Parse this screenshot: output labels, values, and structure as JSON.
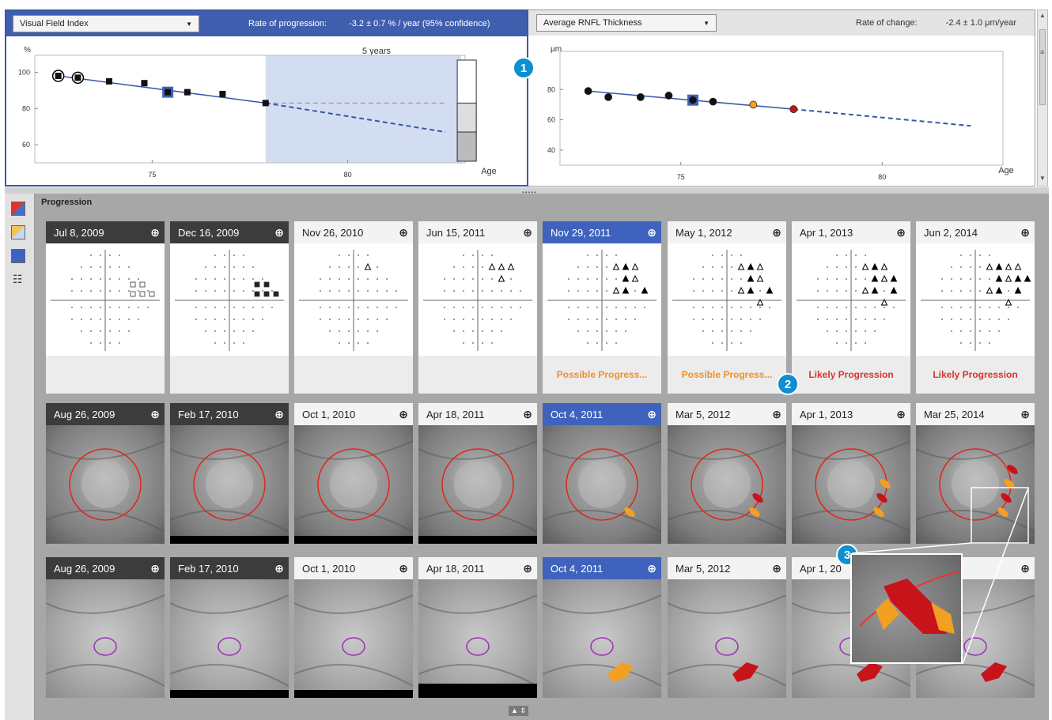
{
  "vfi_panel": {
    "metric_label": "Visual Field Index",
    "rate_label": "Rate of progression:",
    "rate_value": "-3.2 ± 0.7 % / year (95% confidence)",
    "y_unit": "%",
    "window_label": "5 years",
    "x_label": "Age"
  },
  "rnfl_panel": {
    "metric_label": "Average RNFL Thickness",
    "rate_label": "Rate of change:",
    "rate_value": "-2.4 ± 1.0 μm/year",
    "y_unit": "μm",
    "x_label": "Age"
  },
  "badges": {
    "b1": "1",
    "b2": "2",
    "b3": "3"
  },
  "progression": {
    "title": "Progression"
  },
  "vf_row": [
    {
      "date": "Jul 8, 2009",
      "style": "dark",
      "label": "",
      "label_color": ""
    },
    {
      "date": "Dec 16, 2009",
      "style": "dark",
      "label": "",
      "label_color": ""
    },
    {
      "date": "Nov 26, 2010",
      "style": "light",
      "label": "",
      "label_color": ""
    },
    {
      "date": "Jun 15, 2011",
      "style": "light",
      "label": "",
      "label_color": ""
    },
    {
      "date": "Nov 29, 2011",
      "style": "blue",
      "label": "Possible Progress...",
      "label_color": "#f0902a"
    },
    {
      "date": "May 1, 2012",
      "style": "light",
      "label": "Possible Progress...",
      "label_color": "#f0902a"
    },
    {
      "date": "Apr 1, 2013",
      "style": "light",
      "label": "Likely Progression",
      "label_color": "#d9342b"
    },
    {
      "date": "Jun 2, 2014",
      "style": "light",
      "label": "Likely Progression",
      "label_color": "#d9342b"
    }
  ],
  "disc_row": [
    {
      "date": "Aug 26, 2009",
      "style": "dark"
    },
    {
      "date": "Feb 17, 2010",
      "style": "dark"
    },
    {
      "date": "Oct 1, 2010",
      "style": "light"
    },
    {
      "date": "Apr 18, 2011",
      "style": "light"
    },
    {
      "date": "Oct 4, 2011",
      "style": "blue"
    },
    {
      "date": "Mar 5, 2012",
      "style": "light"
    },
    {
      "date": "Apr 1, 2013",
      "style": "light"
    },
    {
      "date": "Mar 25, 2014",
      "style": "light"
    }
  ],
  "macula_row": [
    {
      "date": "Aug 26, 2009",
      "style": "dark"
    },
    {
      "date": "Feb 17, 2010",
      "style": "dark"
    },
    {
      "date": "Oct 1, 2010",
      "style": "light"
    },
    {
      "date": "Apr 18, 2011",
      "style": "light"
    },
    {
      "date": "Oct 4, 2011",
      "style": "blue"
    },
    {
      "date": "Mar 5, 2012",
      "style": "light"
    },
    {
      "date": "Apr 1, 20",
      "style": "light"
    },
    {
      "date": ", 2014",
      "style": "light"
    }
  ],
  "chart_data": [
    {
      "type": "line",
      "ylabel": "%",
      "xlabel": "Age",
      "xlim": [
        72,
        83
      ],
      "ylim": [
        50,
        105
      ],
      "x_ticks": [
        75,
        80
      ],
      "y_ticks": [
        60,
        80,
        100
      ],
      "series": [
        {
          "x": [
            72.6,
            73.1,
            73.9,
            74.8,
            75.4,
            75.9,
            76.8,
            77.9
          ],
          "y": [
            98,
            97,
            95,
            94,
            89,
            89,
            88,
            83
          ]
        }
      ],
      "projection": {
        "x": [
          77.9,
          82.5
        ],
        "y": [
          83,
          67
        ]
      },
      "baseline": 83,
      "window": [
        77.9,
        82.9
      ],
      "window_label": "5 years"
    },
    {
      "type": "line",
      "ylabel": "μm",
      "xlabel": "Age",
      "xlim": [
        72,
        83
      ],
      "ylim": [
        30,
        100
      ],
      "x_ticks": [
        75,
        80
      ],
      "y_ticks": [
        40,
        60,
        80
      ],
      "series": [
        {
          "x": [
            72.7,
            73.2,
            74.0,
            74.7,
            75.3,
            75.8,
            76.8,
            77.8
          ],
          "y": [
            79,
            75,
            75,
            76,
            73,
            72,
            70,
            67
          ]
        }
      ],
      "projection": {
        "x": [
          77.8,
          82.2
        ],
        "y": [
          67,
          56
        ]
      }
    }
  ]
}
